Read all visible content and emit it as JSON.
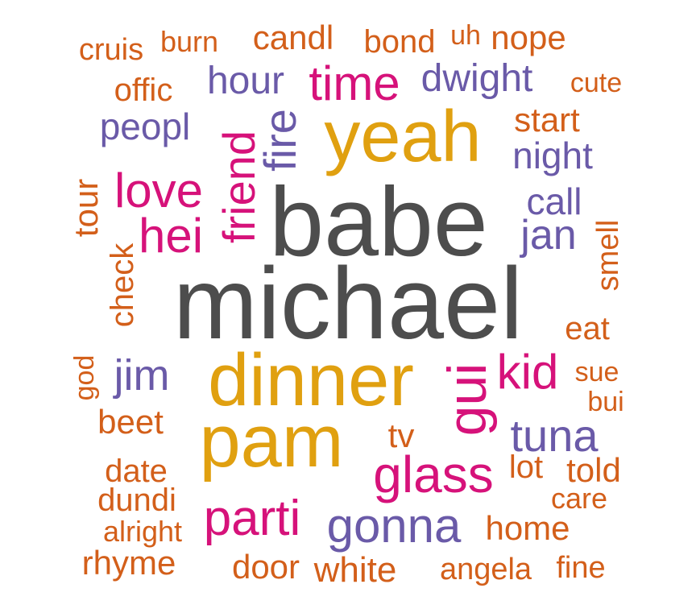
{
  "colors": {
    "orange": "#d35f1a",
    "purple": "#6a5aa8",
    "pink": "#d6127a",
    "gold": "#e0a010",
    "gray": "#4d4d4d"
  },
  "words": {
    "cruis": "cruis",
    "burn": "burn",
    "candl": "candl",
    "bond": "bond",
    "uh": "uh",
    "nope": "nope",
    "offic": "offic",
    "hour": "hour",
    "time": "time",
    "dwight": "dwight",
    "cute": "cute",
    "peopl": "peopl",
    "fire": "fire",
    "friend": "friend",
    "yeah": "yeah",
    "start": "start",
    "night": "night",
    "tour": "tour",
    "love": "love",
    "babe": "babe",
    "call": "call",
    "hei": "hei",
    "jan": "jan",
    "smell": "smell",
    "check": "check",
    "michael": "michael",
    "eat": "eat",
    "god": "god",
    "jim": "jim",
    "dinner": "dinner",
    "gui": "gui",
    "kid": "kid",
    "sue": "sue",
    "bui": "bui",
    "beet": "beet",
    "pam": "pam",
    "tv": "tv",
    "tuna": "tuna",
    "date": "date",
    "glass": "glass",
    "lot": "lot",
    "told": "told",
    "dundi": "dundi",
    "care": "care",
    "parti": "parti",
    "alright": "alright",
    "gonna": "gonna",
    "home": "home",
    "rhyme": "rhyme",
    "door": "door",
    "white": "white",
    "angela": "angela",
    "fine": "fine"
  }
}
